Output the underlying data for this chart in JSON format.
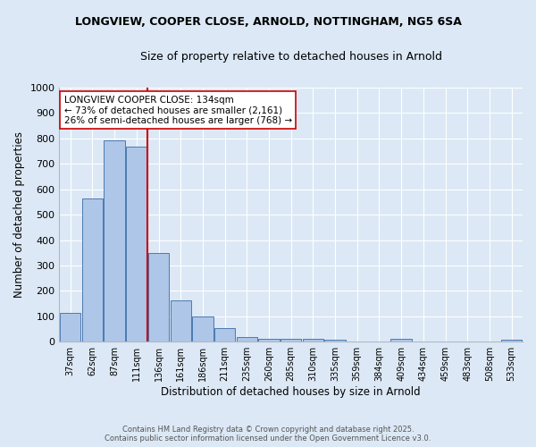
{
  "title1": "LONGVIEW, COOPER CLOSE, ARNOLD, NOTTINGHAM, NG5 6SA",
  "title2": "Size of property relative to detached houses in Arnold",
  "xlabel": "Distribution of detached houses by size in Arnold",
  "ylabel": "Number of detached properties",
  "categories": [
    "37sqm",
    "62sqm",
    "87sqm",
    "111sqm",
    "136sqm",
    "161sqm",
    "186sqm",
    "211sqm",
    "235sqm",
    "260sqm",
    "285sqm",
    "310sqm",
    "335sqm",
    "359sqm",
    "384sqm",
    "409sqm",
    "434sqm",
    "459sqm",
    "483sqm",
    "508sqm",
    "533sqm"
  ],
  "values": [
    113,
    565,
    793,
    769,
    350,
    163,
    100,
    52,
    18,
    12,
    10,
    10,
    8,
    0,
    0,
    10,
    0,
    0,
    0,
    0,
    8
  ],
  "bar_color": "#aec6e8",
  "bar_edge_color": "#4c7ab0",
  "vline_x_index": 3.5,
  "vline_color": "#cc0000",
  "annotation_title": "LONGVIEW COOPER CLOSE: 134sqm",
  "annotation_line1": "← 73% of detached houses are smaller (2,161)",
  "annotation_line2": "26% of semi-detached houses are larger (768) →",
  "annotation_box_color": "#ffffff",
  "annotation_box_edge": "#cc0000",
  "background_color": "#dce8f5",
  "plot_background": "#dce8f5",
  "grid_color": "#ffffff",
  "footer1": "Contains HM Land Registry data © Crown copyright and database right 2025.",
  "footer2": "Contains public sector information licensed under the Open Government Licence v3.0.",
  "ylim": [
    0,
    1000
  ],
  "yticks": [
    0,
    100,
    200,
    300,
    400,
    500,
    600,
    700,
    800,
    900,
    1000
  ]
}
